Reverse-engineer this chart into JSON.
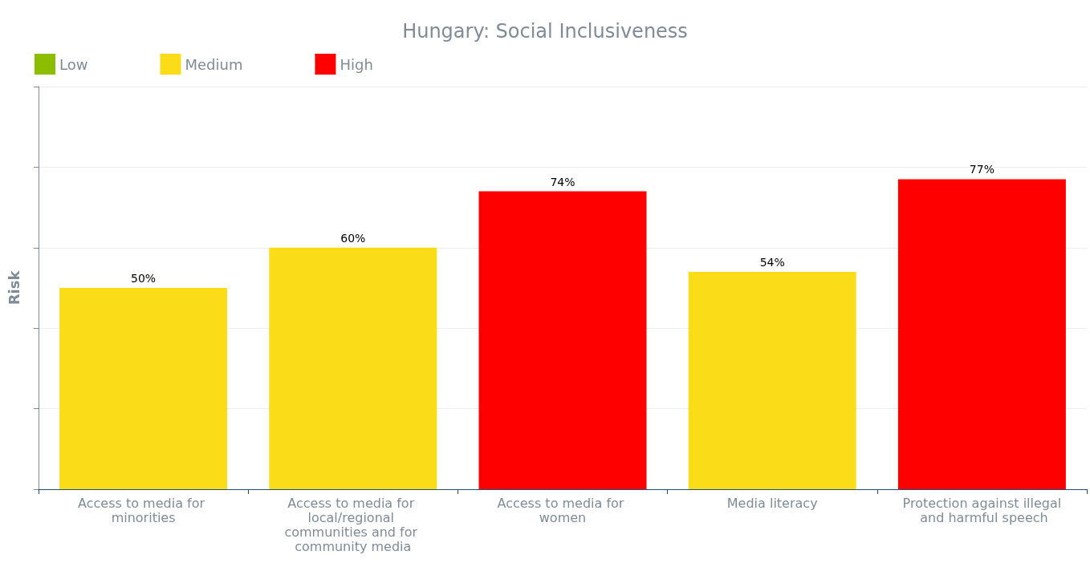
{
  "chart_data": {
    "type": "bar",
    "title": "Hungary: Social Inclusiveness",
    "ylabel": "Risk",
    "categories": [
      "Access to media for minorities",
      "Access to media for local/regional communities and for community media",
      "Access to media for women",
      "Media literacy",
      "Protection against illegal and harmful speech"
    ],
    "series": [
      {
        "name": "Low",
        "color": "#8cbd00",
        "values": [
          null,
          null,
          null,
          null,
          null
        ]
      },
      {
        "name": "Medium",
        "color": "#fadc19",
        "values": [
          50,
          60,
          null,
          54,
          null
        ],
        "value_labels": [
          "50%",
          "60%",
          null,
          "54%",
          null
        ]
      },
      {
        "name": "High",
        "color": "#ff0000",
        "values": [
          null,
          null,
          74,
          null,
          77
        ],
        "value_labels": [
          null,
          null,
          "74%",
          null,
          "77%"
        ]
      }
    ],
    "stacked": true,
    "ylim": [
      0,
      100
    ],
    "yticks": [
      {
        "value": 0,
        "label": null
      },
      {
        "value": 20,
        "label": null
      },
      {
        "value": 40,
        "label": null
      },
      {
        "value": 60,
        "label": null
      },
      {
        "value": 80,
        "label": null
      },
      {
        "value": 100,
        "label": null
      }
    ],
    "grid": "y",
    "legend": "top left"
  }
}
